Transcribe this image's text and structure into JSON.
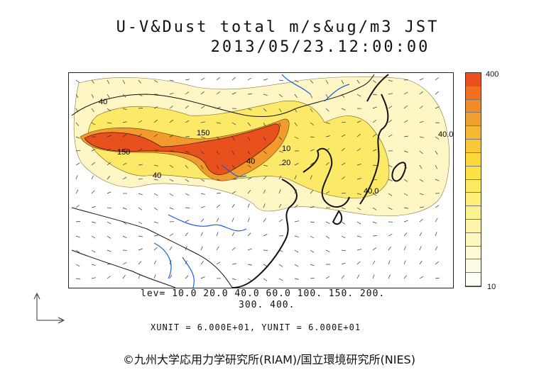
{
  "title": {
    "line1": "U-V&Dust total m/s&ug/m3 JST",
    "line2": "2013/05/23.12:00:00"
  },
  "colorbar": {
    "max_label": "400",
    "min_label": "10",
    "colors": [
      "#e8501e",
      "#f07020",
      "#f08c28",
      "#f0a030",
      "#f5b834",
      "#f8c838",
      "#fbd83c",
      "#fde245",
      "#fdea60",
      "#fdee78",
      "#fdf290",
      "#fef5a8",
      "#fef8c0",
      "#fefad4",
      "#fffce6",
      "#fffef4"
    ]
  },
  "legend": {
    "levels_line1": "lev= 10.0 20.0 40.0 60.0 100. 150. 200.",
    "levels_line2": "300. 400.",
    "units": "XUNIT = 6.000E+01, YUNIT = 6.000E+01"
  },
  "map_labels": {
    "label_150_a": "150",
    "label_150_b": "150",
    "label_40_a": "40",
    "label_40_b": "40",
    "label_40_c": "40.0",
    "label_40_d": "40.0",
    "label_10": "10",
    "label_20": "20",
    "label_40_e": "40"
  },
  "credit": "©九州大学応用力学研究所(RIAM)/国立環境研究所(NIES)"
}
